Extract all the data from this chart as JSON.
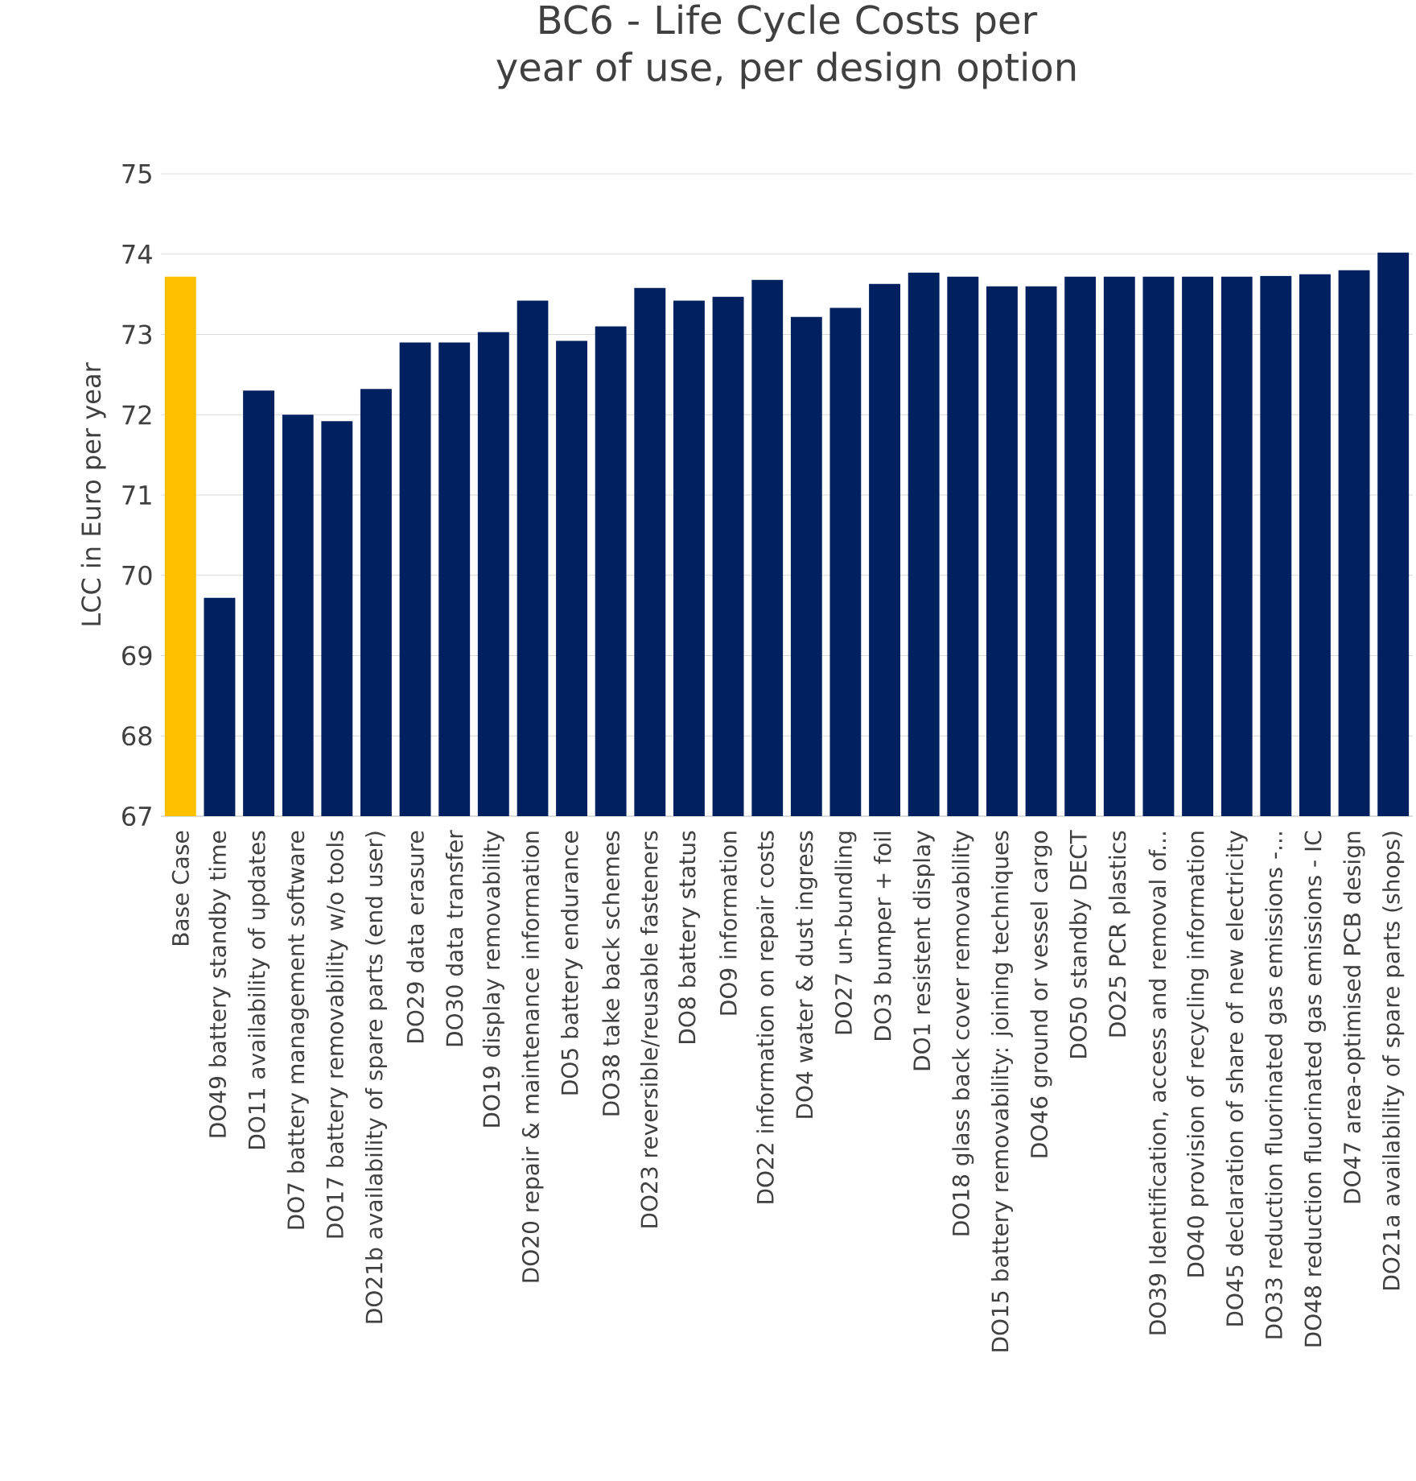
{
  "chart_data": {
    "type": "bar",
    "title": "BC6 - Life Cycle Costs per year of use, per design option",
    "ylabel": "LCC in Euro per year",
    "categories": [
      "Base Case",
      "DO49 battery standby time",
      "DO11 availability of updates",
      "DO7 battery management software",
      "DO17 battery removability w/o tools",
      "DO21b availability of spare parts (end user)",
      "DO29 data erasure",
      "DO30 data transfer",
      "DO19 display removability",
      "DO20 repair & maintenance information",
      "DO5 battery endurance",
      "DO38 take back schemes",
      "DO23 reversible/reusable fasteners",
      "DO8 battery status",
      "DO9 information",
      "DO22 information on repair costs",
      "DO4 water & dust ingress",
      "DO27 un-bundling",
      "DO3 bumper + foil",
      "DO1 resistent display",
      "DO18 glass back cover removability",
      "DO15 battery removability: joining techniques",
      "DO46 ground or vessel cargo",
      "DO50 standby DECT",
      "DO25 PCR plastics",
      "DO39 Identification, access and removal of...",
      "DO40 provision of recycling information",
      "DO45 declaration of share of new electricity",
      "DO33 reduction fluorinated gas emissions -...",
      "DO48 reduction fluorinated gas emissions - IC",
      "DO47 area-optimised PCB design",
      "DO21a availability of spare parts (shops)"
    ],
    "values": [
      73.72,
      69.72,
      72.3,
      72.0,
      71.92,
      72.32,
      72.9,
      72.9,
      73.03,
      73.42,
      72.92,
      73.1,
      73.58,
      73.42,
      73.47,
      73.68,
      73.22,
      73.33,
      73.63,
      73.77,
      73.72,
      73.6,
      73.6,
      73.72,
      73.72,
      73.72,
      73.72,
      73.72,
      73.73,
      73.75,
      73.8,
      74.02
    ],
    "colors": [
      "#ffc000",
      "#002060",
      "#002060",
      "#002060",
      "#002060",
      "#002060",
      "#002060",
      "#002060",
      "#002060",
      "#002060",
      "#002060",
      "#002060",
      "#002060",
      "#002060",
      "#002060",
      "#002060",
      "#002060",
      "#002060",
      "#002060",
      "#002060",
      "#002060",
      "#002060",
      "#002060",
      "#002060",
      "#002060",
      "#002060",
      "#002060",
      "#002060",
      "#002060",
      "#002060",
      "#002060",
      "#002060"
    ],
    "ylim": [
      67,
      75
    ],
    "yticks": [
      67,
      68,
      69,
      70,
      71,
      72,
      73,
      74,
      75
    ],
    "grid": "y"
  }
}
